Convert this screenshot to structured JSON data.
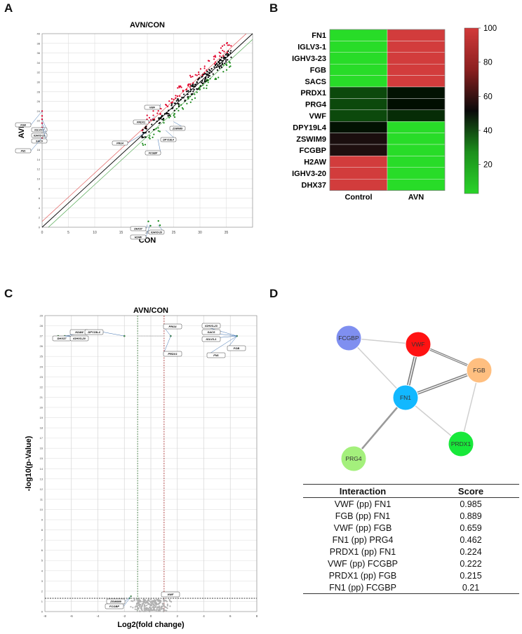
{
  "panels": {
    "a": "A",
    "b": "B",
    "c": "C",
    "d": "D"
  },
  "colors": {
    "up": "#e0002a",
    "down": "#1b8a1b",
    "neutral": "#000000",
    "grey": "#b0b0b0"
  },
  "chart_data": [
    {
      "id": "A",
      "type": "scatter",
      "title": "AVN/CON",
      "xlabel": "CON",
      "ylabel": "AVN",
      "xlim": [
        0,
        40
      ],
      "ylim": [
        0,
        40
      ],
      "xticks": [
        "0",
        "5",
        "10",
        "15",
        "20",
        "25",
        "30",
        "35"
      ],
      "yticks": [
        "0",
        "2",
        "4",
        "6",
        "8",
        "10",
        "12",
        "14",
        "16",
        "18",
        "20",
        "22",
        "24",
        "26",
        "28",
        "30",
        "32",
        "34",
        "36",
        "38",
        "40"
      ],
      "callouts": [
        {
          "label": "FGB",
          "x": 0,
          "y": 24
        },
        {
          "label": "IGLV3-1",
          "x": 0,
          "y": 22.3
        },
        {
          "label": "IGHV3-23",
          "x": 0,
          "y": 21.5
        },
        {
          "label": "SACS",
          "x": 0,
          "y": 20.6
        },
        {
          "label": "FN1",
          "x": 0,
          "y": 18.5
        },
        {
          "label": "VWF",
          "x": 22.5,
          "y": 25.5
        },
        {
          "label": "PRDX1",
          "x": 21.5,
          "y": 23
        },
        {
          "label": "ZSWIM9",
          "x": 25,
          "y": 21.8
        },
        {
          "label": "PRG4",
          "x": 19.5,
          "y": 19.5
        },
        {
          "label": "DPY19L4",
          "x": 23.5,
          "y": 20
        },
        {
          "label": "FCGBP",
          "x": 22,
          "y": 18.2
        },
        {
          "label": "DHX37",
          "x": 20,
          "y": 0.5
        },
        {
          "label": "IGHV3-20",
          "x": 22,
          "y": 0.5
        },
        {
          "label": "H2AW",
          "x": 20.5,
          "y": 0.5
        }
      ]
    },
    {
      "id": "B",
      "type": "heatmap",
      "rows": [
        "FN1",
        "IGLV3-1",
        "IGHV3-23",
        "FGB",
        "SACS",
        "PRDX1",
        "PRG4",
        "VWF",
        "DPY19L4",
        "ZSWIM9",
        "FCGBP",
        "H2AW",
        "IGHV3-20",
        "DHX37"
      ],
      "columns": [
        "Control",
        "AVN"
      ],
      "values": [
        [
          0,
          100
        ],
        [
          0,
          100
        ],
        [
          0,
          100
        ],
        [
          0,
          100
        ],
        [
          0,
          100
        ],
        [
          35,
          48
        ],
        [
          35,
          49
        ],
        [
          35,
          42
        ],
        [
          48,
          0
        ],
        [
          54,
          0
        ],
        [
          55,
          0
        ],
        [
          100,
          0
        ],
        [
          100,
          0
        ],
        [
          100,
          0
        ]
      ],
      "colorbar_ticks": [
        "20",
        "40",
        "60",
        "80",
        "100"
      ],
      "range": [
        0,
        100
      ]
    },
    {
      "id": "C",
      "type": "scatter",
      "title": "AVN/CON",
      "xlabel": "Log2(fold change)",
      "ylabel": "-log10(p-Value)",
      "xlim": [
        -8,
        8
      ],
      "ylim": [
        0,
        29
      ],
      "xticks": [
        "-8",
        "-6",
        "-4",
        "-2",
        "0",
        "2",
        "4",
        "6",
        "8"
      ],
      "yticks": [
        "0",
        "1",
        "2",
        "3",
        "4",
        "5",
        "6",
        "7",
        "8",
        "9",
        "10",
        "11",
        "12",
        "13",
        "14",
        "15",
        "16",
        "17",
        "18",
        "19",
        "20",
        "21",
        "22",
        "23",
        "24",
        "25",
        "26",
        "27",
        "28",
        "29"
      ],
      "callouts": [
        {
          "label": "H2AW",
          "x": -6.5,
          "y": 27
        },
        {
          "label": "DHX37",
          "x": -7,
          "y": 27
        },
        {
          "label": "IGHV3-20",
          "x": -6.5,
          "y": 27
        },
        {
          "label": "DPY19L4",
          "x": -2,
          "y": 27
        },
        {
          "label": "PRG4",
          "x": 1.5,
          "y": 27
        },
        {
          "label": "PRDX1",
          "x": 1.5,
          "y": 27
        },
        {
          "label": "IGHV3-23",
          "x": 6.5,
          "y": 27
        },
        {
          "label": "SACS",
          "x": 6.5,
          "y": 27
        },
        {
          "label": "IGLV3-1",
          "x": 6.5,
          "y": 27
        },
        {
          "label": "FGB",
          "x": 6.5,
          "y": 27
        },
        {
          "label": "FN1",
          "x": 6.5,
          "y": 27
        },
        {
          "label": "ZSWIM9",
          "x": -1.5,
          "y": 1.5
        },
        {
          "label": "FCGBP",
          "x": -1.6,
          "y": 1.3
        },
        {
          "label": "VWF",
          "x": 1.2,
          "y": 1.6
        }
      ]
    },
    {
      "id": "D",
      "type": "network",
      "nodes": [
        {
          "id": "FCGBP",
          "color": "#7f8ff0"
        },
        {
          "id": "VWF",
          "color": "#ff1212"
        },
        {
          "id": "FGB",
          "color": "#ffbf80"
        },
        {
          "id": "FN1",
          "color": "#12b8ff"
        },
        {
          "id": "PRDX1",
          "color": "#18e83a"
        },
        {
          "id": "PRG4",
          "color": "#a4f07c"
        }
      ],
      "edges": [
        {
          "a": "VWF",
          "b": "FN1",
          "w": 0.985
        },
        {
          "a": "FGB",
          "b": "FN1",
          "w": 0.889
        },
        {
          "a": "VWF",
          "b": "FGB",
          "w": 0.659
        },
        {
          "a": "FN1",
          "b": "PRG4",
          "w": 0.462
        },
        {
          "a": "PRDX1",
          "b": "FN1",
          "w": 0.224
        },
        {
          "a": "VWF",
          "b": "FCGBP",
          "w": 0.222
        },
        {
          "a": "PRDX1",
          "b": "FGB",
          "w": 0.215
        },
        {
          "a": "FN1",
          "b": "FCGBP",
          "w": 0.21
        }
      ]
    }
  ],
  "table": {
    "headers": [
      "Interaction",
      "Score"
    ],
    "rows": [
      [
        "VWF (pp) FN1",
        "0.985"
      ],
      [
        "FGB (pp) FN1",
        "0.889"
      ],
      [
        "VWF (pp) FGB",
        "0.659"
      ],
      [
        "FN1 (pp) PRG4",
        "0.462"
      ],
      [
        "PRDX1 (pp) FN1",
        "0.224"
      ],
      [
        "VWF (pp) FCGBP",
        "0.222"
      ],
      [
        "PRDX1 (pp) FGB",
        "0.215"
      ],
      [
        "FN1 (pp) FCGBP",
        "0.21"
      ]
    ]
  }
}
